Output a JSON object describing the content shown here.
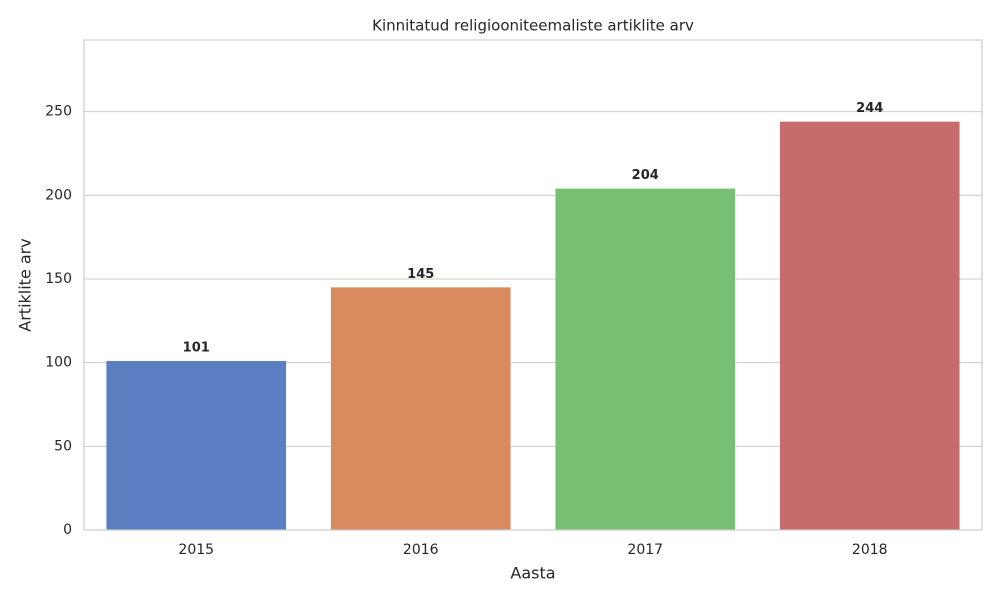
{
  "chart_data": {
    "type": "bar",
    "title": "Kinnitatud religiooniteemaliste artiklite arv",
    "xlabel": "Aasta",
    "ylabel": "Artiklite arv",
    "categories": [
      "2015",
      "2016",
      "2017",
      "2018"
    ],
    "values": [
      101,
      145,
      204,
      244
    ],
    "colors": [
      "#5b7ec2",
      "#d98b5f",
      "#77c073",
      "#c66c6c"
    ],
    "ylim": [
      0,
      292.8
    ],
    "yticks": [
      0,
      50,
      100,
      150,
      200,
      250
    ],
    "grid": true
  }
}
